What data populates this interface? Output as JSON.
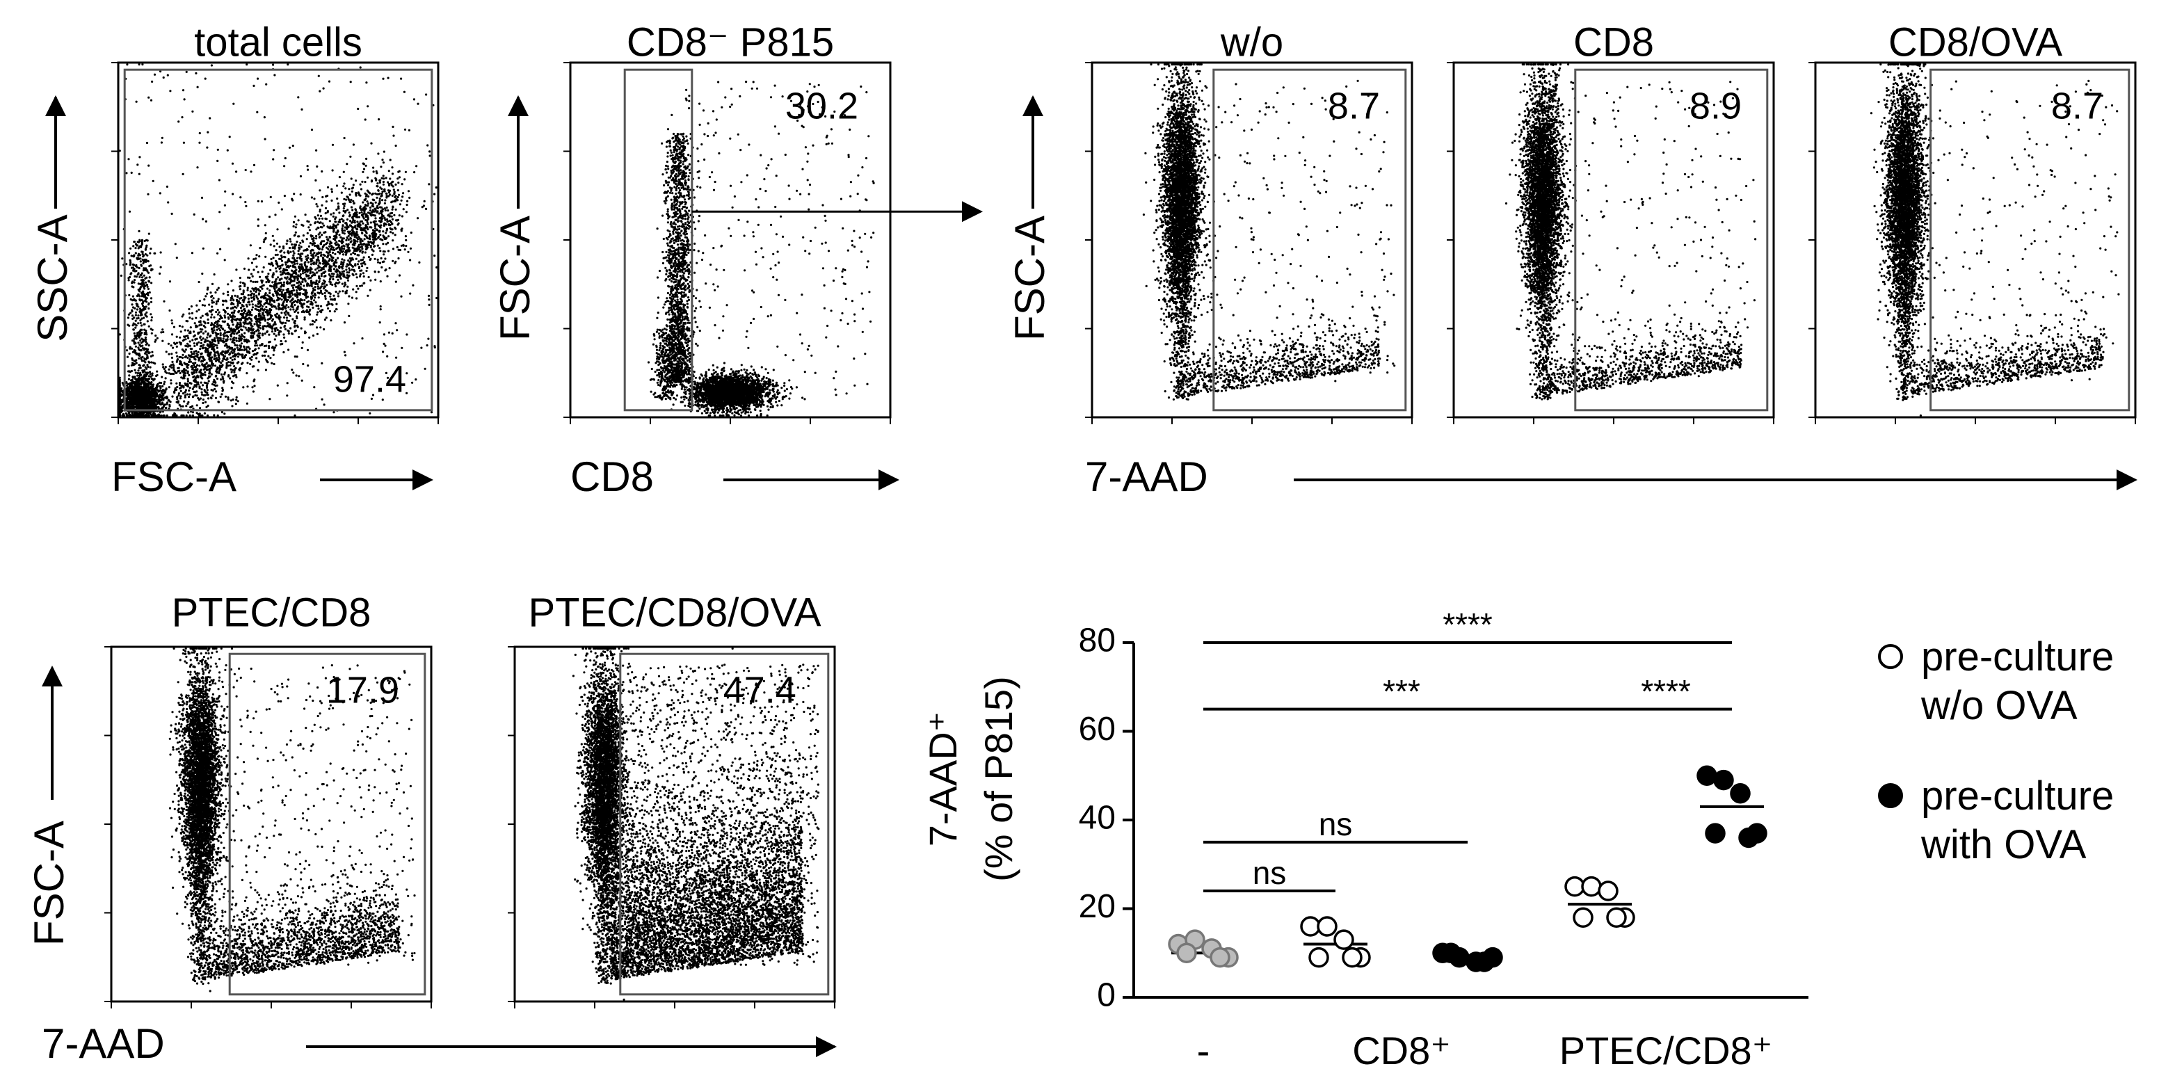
{
  "flow_groups": [
    {
      "y_label": "SSC-A",
      "x_label": "FSC-A",
      "panels": [
        {
          "title": "total cells",
          "gate": 97.4
        }
      ]
    },
    {
      "y_label": "FSC-A",
      "x_label": "CD8",
      "panels": [
        {
          "title": "CD8⁻ P815",
          "gate": 30.2
        }
      ]
    },
    {
      "y_label": "FSC-A",
      "x_label": "7-AAD",
      "panels": [
        {
          "title": "w/o",
          "gate": 8.7
        },
        {
          "title": "CD8",
          "gate": 8.9
        },
        {
          "title": "CD8/OVA",
          "gate": 8.7
        }
      ]
    },
    {
      "y_label": "FSC-A",
      "x_label": "7-AAD",
      "panels": [
        {
          "title": "PTEC/CD8",
          "gate": 17.9
        },
        {
          "title": "PTEC/CD8/OVA",
          "gate": 47.4
        }
      ]
    }
  ],
  "chart_data": {
    "type": "scatter",
    "ylabel": [
      "7-AAD⁺",
      "(% of P815)"
    ],
    "categories": [
      "-",
      "CD8⁺",
      "PTEC/CD8⁺"
    ],
    "ylim": [
      0,
      80
    ],
    "yticks": [
      0,
      20,
      40,
      60,
      80
    ],
    "series": [
      {
        "color": "#bbbbbb",
        "values": [
          [
            12,
            13,
            11,
            9,
            10,
            9
          ],
          null,
          null
        ],
        "means": [
          10,
          null,
          null
        ]
      },
      {
        "name": "pre-culture w/o OVA",
        "color": "#ffffff",
        "values": [
          null,
          [
            16,
            16,
            13,
            9,
            9,
            9
          ],
          [
            25,
            25,
            24,
            18,
            18,
            18
          ]
        ],
        "means": [
          null,
          12,
          21
        ]
      },
      {
        "name": "pre-culture with OVA",
        "color": "#000000",
        "values": [
          null,
          [
            10,
            9,
            8,
            9,
            10,
            8
          ],
          [
            50,
            49,
            46,
            37,
            37,
            36
          ]
        ],
        "means": [
          null,
          9,
          43
        ]
      }
    ],
    "significance": [
      {
        "label": "ns",
        "y": 24
      },
      {
        "label": "ns",
        "y": 35
      },
      {
        "label": "***",
        "y": 65
      },
      {
        "label": "****",
        "y": 65
      },
      {
        "label": "****",
        "y": 80
      }
    ]
  }
}
